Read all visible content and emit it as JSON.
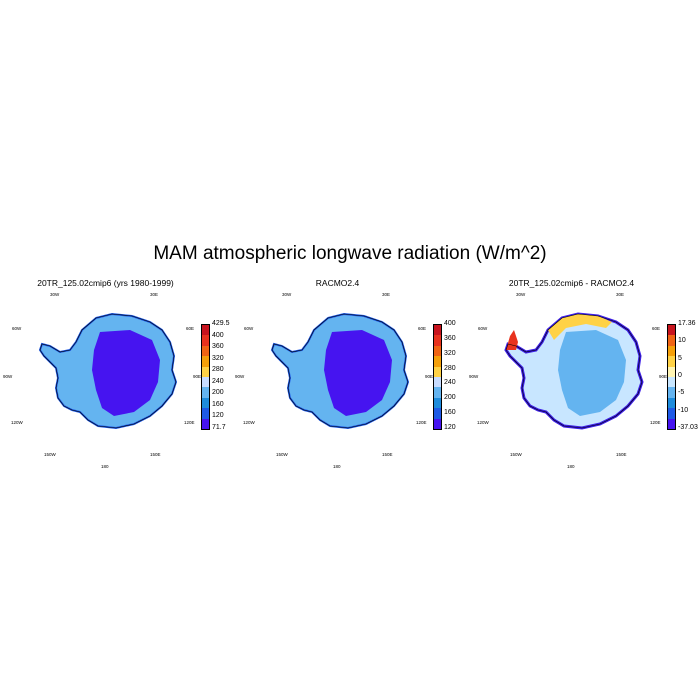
{
  "title": "MAM atmospheric longwave radiation (W/m^2)",
  "panels": [
    {
      "title": "20TR_125.02cmip6 (yrs 1980-1999)",
      "colorbar": {
        "labels": [
          "429.5",
          "400",
          "360",
          "320",
          "280",
          "240",
          "200",
          "160",
          "120",
          "71.7"
        ],
        "colors": [
          "#c8141e",
          "#e8321e",
          "#f06414",
          "#f5a00a",
          "#ffd246",
          "#c8dcff",
          "#64b4f0",
          "#1e8cdc",
          "#1e5ae6",
          "#4614f0"
        ]
      }
    },
    {
      "title": "RACMO2.4",
      "colorbar": {
        "labels": [
          "400",
          "360",
          "320",
          "280",
          "240",
          "200",
          "160",
          "120"
        ],
        "colors": [
          "#c8141e",
          "#e8321e",
          "#f06414",
          "#f5a00a",
          "#ffd246",
          "#c8dcff",
          "#64b4f0",
          "#1e8cdc",
          "#1e5ae6",
          "#4614f0"
        ]
      }
    },
    {
      "title": "20TR_125.02cmip6 - RACMO2.4",
      "colorbar": {
        "labels": [
          "17.36",
          "10",
          "5",
          "0",
          "-5",
          "-10",
          "-37.03"
        ],
        "colors": [
          "#c8141e",
          "#f06414",
          "#f5a00a",
          "#ffd246",
          "#fff5b4",
          "#c8e6ff",
          "#64b4f0",
          "#1e8cdc",
          "#1e5ae6",
          "#4614f0"
        ]
      }
    }
  ],
  "lon_labels": {
    "w30": "30W",
    "e30": "30E",
    "w60": "60W",
    "e60": "60E",
    "w90": "90W",
    "e90": "90E",
    "w120": "120W",
    "e120": "120E",
    "w150": "150W",
    "e150": "150E",
    "s180": "180"
  }
}
